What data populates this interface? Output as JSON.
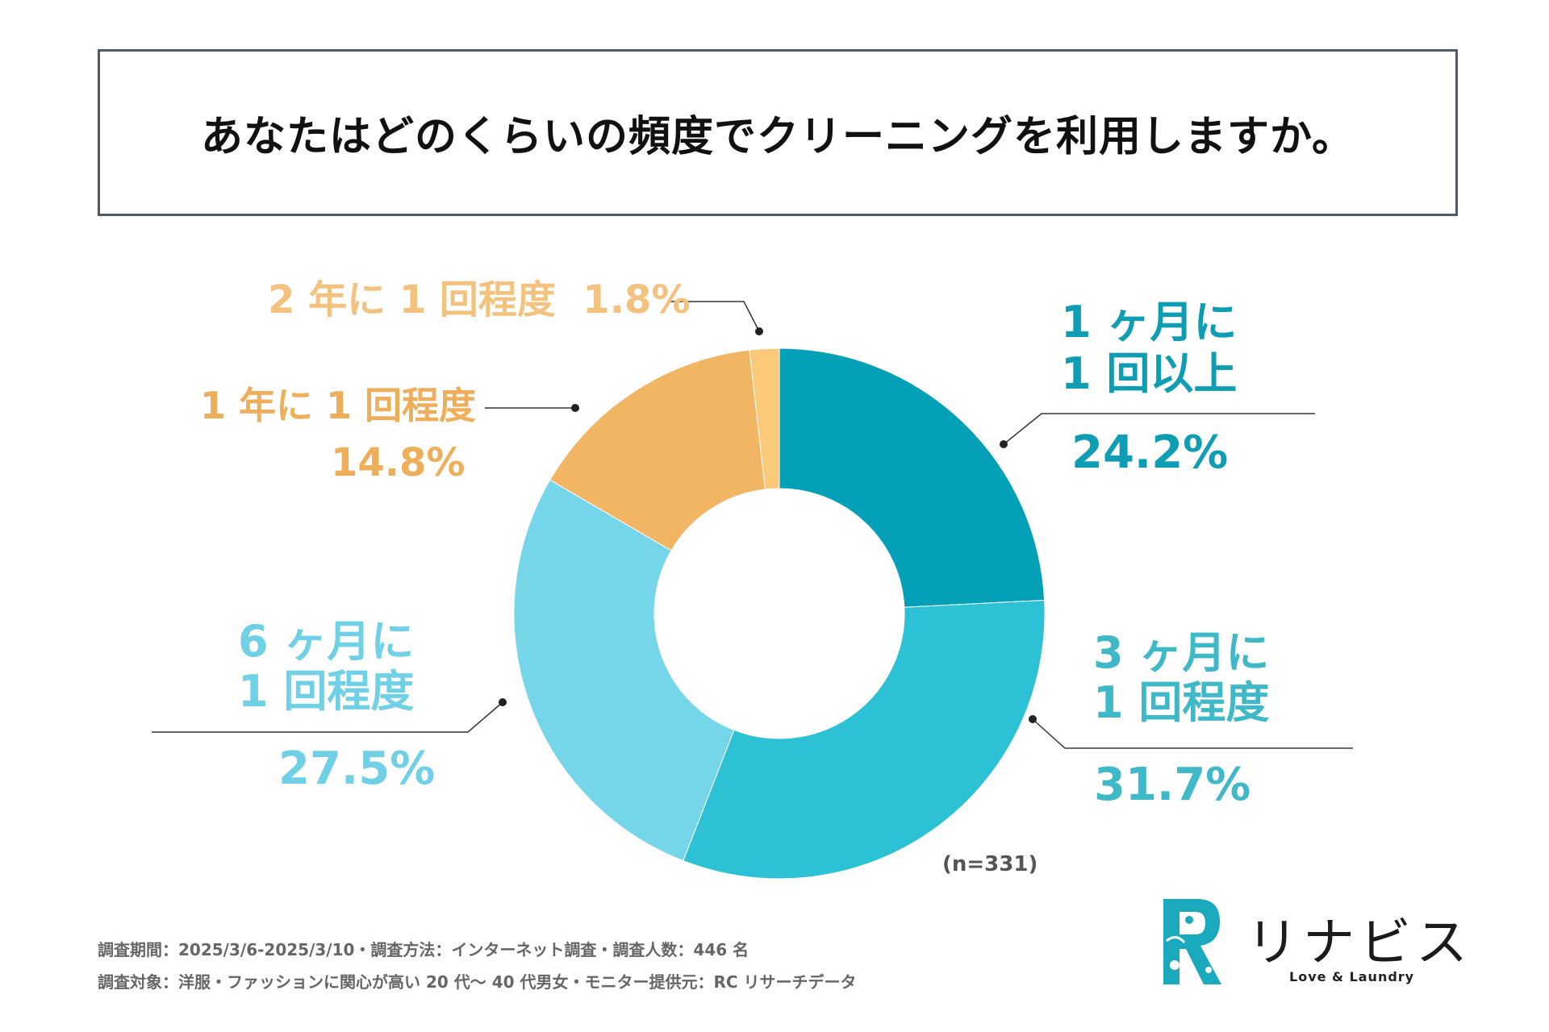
{
  "title": "あなたはどのくらいの頻度でクリーニングを利用しますか。",
  "sample_size": "(n=331)",
  "footer": {
    "line1": "調査期間：2025/3/6-2025/3/10・調査方法：インターネット調査・調査人数：446 名",
    "line2": "調査対象：洋服・ファッションに関心が高い 20 代〜 40 代男女・モニター提供元：RC リサーチデータ"
  },
  "brand": {
    "name": "リナビス",
    "tagline": "Love & Laundry"
  },
  "chart_data": {
    "type": "pie",
    "style": "donut",
    "title": "あなたはどのくらいの頻度でクリーニングを利用しますか。",
    "categories": [
      "1 ヶ月に 1 回以上",
      "3 ヶ月に 1 回程度",
      "6 ヶ月に 1 回程度",
      "1 年に 1 回程度",
      "2 年に 1 回程度"
    ],
    "values": [
      24.2,
      31.7,
      27.5,
      14.8,
      1.8
    ],
    "colors": [
      "#04a0b8",
      "#2cc1d4",
      "#75d6ea",
      "#f2b563",
      "#fbc97a"
    ],
    "slices": [
      {
        "label_line1": "1 ヶ月に",
        "label_line2": "1 回以上",
        "value": 24.2,
        "pct_text": "24.2%",
        "color": "#04a0b8"
      },
      {
        "label_line1": "3 ヶ月に",
        "label_line2": "1 回程度",
        "value": 31.7,
        "pct_text": "31.7%",
        "color": "#2cc1d4"
      },
      {
        "label_line1": "6 ヶ月に",
        "label_line2": "1 回程度",
        "value": 27.5,
        "pct_text": "27.5%",
        "color": "#75d6ea"
      },
      {
        "label_line1": "1 年に 1 回程度",
        "value": 14.8,
        "pct_text": "14.8%",
        "color": "#f2b563"
      },
      {
        "label_line1": "2 年に 1 回程度",
        "value": 1.8,
        "pct_text": "1.8%",
        "color": "#fbc97a"
      }
    ],
    "units": "%"
  }
}
